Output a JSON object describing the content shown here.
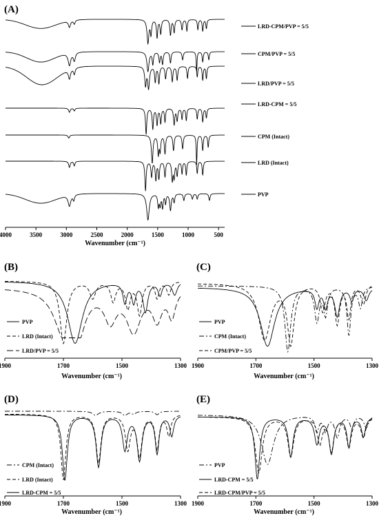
{
  "chart_data": [
    {
      "panel": "(A)",
      "type": "line",
      "xlabel": "Wavenumber (cm⁻¹)",
      "xlim": [
        4000,
        400
      ],
      "x_ticks": [
        "4000",
        "3500",
        "3000",
        "2500",
        "2000",
        "1500",
        "1000",
        "500"
      ],
      "tick_values": [
        4000,
        3500,
        3000,
        2500,
        2000,
        1500,
        1000,
        500
      ],
      "series": [
        {
          "name": "LRD-CPM/PVP = 5/5",
          "style": "solid",
          "broad": [
            [
              3420,
              250,
              0.35
            ]
          ],
          "sharp": [
            [
              2950,
              20,
              0.25
            ],
            [
              2870,
              15,
              0.15
            ],
            [
              1660,
              18,
              0.9
            ],
            [
              1610,
              12,
              0.55
            ],
            [
              1510,
              12,
              0.7
            ],
            [
              1450,
              12,
              0.55
            ],
            [
              1290,
              12,
              0.6
            ],
            [
              1230,
              12,
              0.5
            ],
            [
              1100,
              12,
              0.4
            ],
            [
              1020,
              10,
              0.45
            ],
            [
              840,
              10,
              0.4
            ],
            [
              760,
              10,
              0.45
            ],
            [
              700,
              10,
              0.35
            ]
          ]
        },
        {
          "name": "CPM/PVP = 5/5",
          "style": "solid",
          "broad": [
            [
              3420,
              230,
              0.5
            ]
          ],
          "sharp": [
            [
              2950,
              25,
              0.6
            ],
            [
              2870,
              20,
              0.4
            ],
            [
              1660,
              20,
              0.95
            ],
            [
              1580,
              12,
              0.6
            ],
            [
              1470,
              12,
              0.5
            ],
            [
              1420,
              12,
              0.6
            ],
            [
              1290,
              12,
              0.55
            ],
            [
              1090,
              12,
              0.4
            ],
            [
              860,
              8,
              0.95
            ],
            [
              760,
              10,
              0.5
            ],
            [
              660,
              10,
              0.4
            ]
          ]
        },
        {
          "name": "LRD/PVP = 5/5",
          "style": "solid",
          "broad": [
            [
              3400,
              250,
              0.6
            ]
          ],
          "sharp": [
            [
              2950,
              20,
              0.3
            ],
            [
              2870,
              15,
              0.2
            ],
            [
              1700,
              15,
              0.6
            ],
            [
              1650,
              18,
              0.7
            ],
            [
              1540,
              12,
              0.5
            ],
            [
              1480,
              12,
              0.55
            ],
            [
              1370,
              12,
              0.4
            ],
            [
              1260,
              12,
              0.5
            ],
            [
              1180,
              12,
              0.45
            ],
            [
              1010,
              10,
              0.4
            ],
            [
              850,
              10,
              0.35
            ],
            [
              760,
              10,
              0.45
            ],
            [
              700,
              10,
              0.4
            ]
          ]
        },
        {
          "name": "LRD-CPM = 5/5",
          "style": "solid",
          "broad": [],
          "sharp": [
            [
              2950,
              15,
              0.15
            ],
            [
              2870,
              12,
              0.1
            ],
            [
              1690,
              12,
              0.95
            ],
            [
              1580,
              12,
              0.75
            ],
            [
              1510,
              12,
              0.6
            ],
            [
              1450,
              12,
              0.55
            ],
            [
              1380,
              10,
              0.5
            ],
            [
              1230,
              12,
              0.6
            ],
            [
              1180,
              12,
              0.45
            ],
            [
              1100,
              10,
              0.4
            ],
            [
              1030,
              10,
              0.45
            ],
            [
              850,
              10,
              0.4
            ],
            [
              760,
              10,
              0.5
            ],
            [
              700,
              10,
              0.35
            ]
          ]
        },
        {
          "name": "CPM (Intact)",
          "style": "solid",
          "broad": [],
          "sharp": [
            [
              2960,
              15,
              0.1
            ],
            [
              1590,
              15,
              0.9
            ],
            [
              1490,
              12,
              0.6
            ],
            [
              1460,
              12,
              0.5
            ],
            [
              1380,
              12,
              0.6
            ],
            [
              1240,
              12,
              0.5
            ],
            [
              1090,
              12,
              0.45
            ],
            [
              860,
              8,
              0.95
            ],
            [
              760,
              10,
              0.5
            ],
            [
              670,
              10,
              0.4
            ]
          ]
        },
        {
          "name": "LRD (Intact)",
          "style": "solid",
          "broad": [],
          "sharp": [
            [
              2950,
              15,
              0.2
            ],
            [
              2870,
              12,
              0.15
            ],
            [
              1700,
              12,
              0.95
            ],
            [
              1600,
              12,
              0.5
            ],
            [
              1530,
              12,
              0.6
            ],
            [
              1480,
              12,
              0.55
            ],
            [
              1380,
              12,
              0.5
            ],
            [
              1260,
              12,
              0.6
            ],
            [
              1230,
              12,
              0.5
            ],
            [
              1180,
              12,
              0.45
            ],
            [
              1100,
              10,
              0.4
            ],
            [
              1030,
              10,
              0.45
            ],
            [
              850,
              10,
              0.4
            ],
            [
              760,
              10,
              0.45
            ]
          ]
        },
        {
          "name": "PVP",
          "style": "solid",
          "broad": [
            [
              3420,
              250,
              0.35
            ]
          ],
          "sharp": [
            [
              2950,
              25,
              0.4
            ],
            [
              2880,
              15,
              0.2
            ],
            [
              1660,
              25,
              0.95
            ],
            [
              1490,
              12,
              0.45
            ],
            [
              1460,
              12,
              0.4
            ],
            [
              1420,
              12,
              0.5
            ],
            [
              1370,
              10,
              0.35
            ],
            [
              1290,
              15,
              0.6
            ],
            [
              1230,
              12,
              0.3
            ],
            [
              1070,
              12,
              0.25
            ],
            [
              930,
              12,
              0.2
            ],
            [
              850,
              12,
              0.2
            ],
            [
              650,
              12,
              0.25
            ]
          ]
        }
      ]
    },
    {
      "panel": "(B)",
      "type": "line",
      "xlabel": "Wavenumber (cm⁻¹)",
      "xlim": [
        1900,
        1300
      ],
      "x_ticks": [
        "1900",
        "1700",
        "1500",
        "1300"
      ],
      "tick_values": [
        1900,
        1700,
        1500,
        1300
      ],
      "series": [
        {
          "name": "PVP",
          "style": "solid",
          "peaks": [
            [
              1660,
              30,
              0.95
            ],
            [
              1490,
              8,
              0.3
            ],
            [
              1460,
              8,
              0.3
            ],
            [
              1420,
              10,
              0.45
            ],
            [
              1370,
              8,
              0.2
            ],
            [
              1320,
              10,
              0.2
            ]
          ]
        },
        {
          "name": "LRD (Intact)",
          "style": "dash",
          "peaks": [
            [
              1700,
              14,
              0.95
            ],
            [
              1600,
              12,
              0.25
            ],
            [
              1530,
              10,
              0.3
            ],
            [
              1480,
              10,
              0.4
            ],
            [
              1440,
              10,
              0.5
            ],
            [
              1380,
              8,
              0.25
            ],
            [
              1340,
              8,
              0.2
            ]
          ]
        },
        {
          "name": "LRD/PVP = 5/5",
          "style": "longdash",
          "peaks": [
            [
              1700,
              40,
              0.85
            ],
            [
              1650,
              30,
              0.8
            ],
            [
              1540,
              25,
              0.6
            ],
            [
              1460,
              30,
              0.85
            ],
            [
              1380,
              20,
              0.6
            ],
            [
              1330,
              15,
              0.55
            ]
          ]
        }
      ]
    },
    {
      "panel": "(C)",
      "type": "line",
      "xlabel": "Wavenumber (cm⁻¹)",
      "xlim": [
        1900,
        1300
      ],
      "x_ticks": [
        "1900",
        "1700",
        "1500",
        "1300"
      ],
      "tick_values": [
        1900,
        1700,
        1500,
        1300
      ],
      "series": [
        {
          "name": "PVP",
          "style": "solid",
          "peaks": [
            [
              1660,
              30,
              0.95
            ],
            [
              1490,
              8,
              0.3
            ],
            [
              1460,
              8,
              0.3
            ],
            [
              1420,
              10,
              0.45
            ],
            [
              1370,
              8,
              0.2
            ],
            [
              1320,
              10,
              0.2
            ]
          ]
        },
        {
          "name": "CPM (Intact)",
          "style": "dashdot",
          "peaks": [
            [
              1590,
              12,
              0.95
            ],
            [
              1490,
              10,
              0.5
            ],
            [
              1460,
              8,
              0.4
            ],
            [
              1380,
              8,
              0.7
            ],
            [
              1340,
              8,
              0.3
            ]
          ]
        },
        {
          "name": "CPM/PVP = 5/5",
          "style": "dash",
          "peaks": [
            [
              1670,
              25,
              0.85
            ],
            [
              1580,
              14,
              0.9
            ],
            [
              1470,
              10,
              0.4
            ],
            [
              1420,
              10,
              0.6
            ],
            [
              1380,
              8,
              0.5
            ],
            [
              1330,
              10,
              0.3
            ]
          ]
        }
      ]
    },
    {
      "panel": "(D)",
      "type": "line",
      "xlabel": "Wavenumber (cm⁻¹)",
      "xlim": [
        1900,
        1300
      ],
      "x_ticks": [
        "1900",
        "1700",
        "1500",
        "1300"
      ],
      "tick_values": [
        1900,
        1700,
        1500,
        1300
      ],
      "series": [
        {
          "name": "CPM (Intact)",
          "style": "dashdot",
          "peaks": [
            [
              1590,
              12,
              0.3
            ],
            [
              1490,
              10,
              0.3
            ],
            [
              1460,
              8,
              0.2
            ],
            [
              1380,
              8,
              0.25
            ]
          ]
        },
        {
          "name": "LRD (Intact)",
          "style": "dash",
          "peaks": [
            [
              1700,
              10,
              0.95
            ],
            [
              1580,
              10,
              0.7
            ],
            [
              1480,
              10,
              0.5
            ],
            [
              1440,
              10,
              0.6
            ],
            [
              1380,
              8,
              0.5
            ],
            [
              1340,
              8,
              0.3
            ]
          ]
        },
        {
          "name": "LRD-CPM = 5/5",
          "style": "solid",
          "peaks": [
            [
              1695,
              10,
              0.95
            ],
            [
              1580,
              10,
              0.75
            ],
            [
              1490,
              10,
              0.5
            ],
            [
              1440,
              10,
              0.65
            ],
            [
              1380,
              8,
              0.55
            ],
            [
              1330,
              8,
              0.3
            ]
          ]
        }
      ]
    },
    {
      "panel": "(E)",
      "type": "line",
      "xlabel": "Wavenumber (cm⁻¹)",
      "xlim": [
        1900,
        1300
      ],
      "x_ticks": [
        "1900",
        "1700",
        "1500",
        "1300"
      ],
      "tick_values": [
        1900,
        1700,
        1500,
        1300
      ],
      "series": [
        {
          "name": "PVP",
          "style": "dashdot",
          "peaks": [
            [
              1660,
              25,
              0.8
            ],
            [
              1490,
              8,
              0.25
            ],
            [
              1460,
              8,
              0.25
            ],
            [
              1420,
              10,
              0.35
            ],
            [
              1370,
              8,
              0.2
            ],
            [
              1320,
              10,
              0.2
            ]
          ]
        },
        {
          "name": "LRD-CPM = 5/5",
          "style": "solid",
          "peaks": [
            [
              1695,
              10,
              0.95
            ],
            [
              1580,
              10,
              0.6
            ],
            [
              1490,
              10,
              0.4
            ],
            [
              1440,
              10,
              0.55
            ],
            [
              1380,
              8,
              0.45
            ],
            [
              1330,
              8,
              0.3
            ]
          ]
        },
        {
          "name": "LRD-CPM/PVP = 5/5",
          "style": "dash",
          "peaks": [
            [
              1690,
              14,
              0.85
            ],
            [
              1580,
              12,
              0.6
            ],
            [
              1480,
              10,
              0.4
            ],
            [
              1440,
              10,
              0.5
            ],
            [
              1380,
              10,
              0.45
            ],
            [
              1330,
              10,
              0.3
            ]
          ]
        }
      ]
    }
  ]
}
